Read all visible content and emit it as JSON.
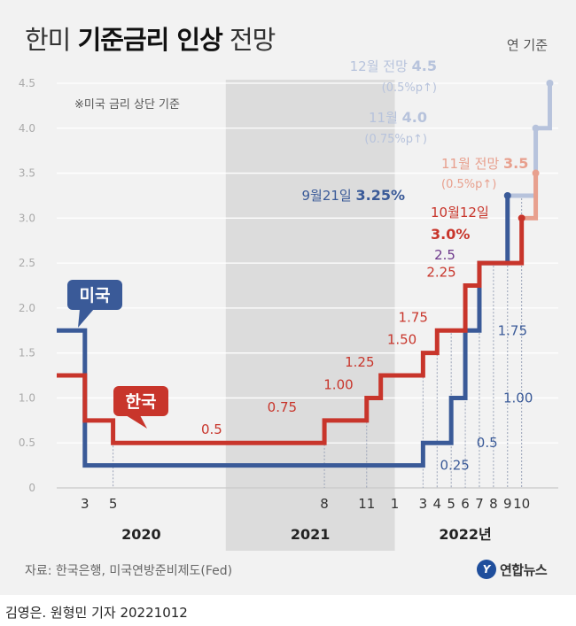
{
  "header": {
    "title_prefix": "한미",
    "title_bold": "기준금리 인상",
    "title_suffix": "전망",
    "basis": "연 기준"
  },
  "footnote": "※미국 금리 상단 기준",
  "footer": {
    "source": "자료: 한국은행, 미국연방준비제도(Fed)",
    "logo": "연합뉴스",
    "logo_mark": "Y",
    "credit": "김영은. 원형민 기자  20221012"
  },
  "colors": {
    "us": "#3a5a98",
    "korea": "#c8352b",
    "us_forecast": "#b7c3dc",
    "korea_forecast": "#e8a08e",
    "shade": "#dcdcdc",
    "grid": "#ffffff",
    "purple": "#6e3a8c"
  },
  "chart_data": {
    "type": "line",
    "step": true,
    "title": "한미 기준금리 인상 전망",
    "ylim": [
      0,
      4.5
    ],
    "yticks": [
      "0",
      "0.5",
      "1.0",
      "1.5",
      "2.0",
      "2.5",
      "3.0",
      "3.5",
      "4.0",
      "4.5"
    ],
    "ytick_values": [
      0,
      0.5,
      1.0,
      1.5,
      2.0,
      2.5,
      3.0,
      3.5,
      4.0,
      4.5
    ],
    "x_range": [
      0,
      35.6
    ],
    "shaded_range": [
      12,
      24
    ],
    "years": [
      {
        "label": "2020",
        "x": 6
      },
      {
        "label": "2021",
        "x": 18
      },
      {
        "label": "2022년",
        "x": 29
      }
    ],
    "month_ticks": [
      {
        "label": "3",
        "x": 2
      },
      {
        "label": "5",
        "x": 4
      },
      {
        "label": "8",
        "x": 19
      },
      {
        "label": "11",
        "x": 22
      },
      {
        "label": "1",
        "x": 24
      },
      {
        "label": "3",
        "x": 26
      },
      {
        "label": "4",
        "x": 27
      },
      {
        "label": "5",
        "x": 28
      },
      {
        "label": "6",
        "x": 29
      },
      {
        "label": "7",
        "x": 30
      },
      {
        "label": "8",
        "x": 31
      },
      {
        "label": "9",
        "x": 32
      },
      {
        "label": "10",
        "x": 33
      }
    ],
    "series": [
      {
        "name": "미국",
        "points": [
          [
            0,
            1.75
          ],
          [
            2,
            0.25
          ],
          [
            26,
            0.5
          ],
          [
            28,
            1.0
          ],
          [
            29,
            1.75
          ],
          [
            30,
            2.5
          ],
          [
            32,
            3.25
          ]
        ],
        "end_x": 32
      },
      {
        "name": "한국",
        "points": [
          [
            0,
            1.25
          ],
          [
            2,
            0.75
          ],
          [
            4,
            0.5
          ],
          [
            19,
            0.75
          ],
          [
            22,
            1.0
          ],
          [
            23,
            1.25
          ],
          [
            26,
            1.5
          ],
          [
            27,
            1.75
          ],
          [
            29,
            2.25
          ],
          [
            30,
            2.5
          ],
          [
            33,
            3.0
          ]
        ],
        "end_x": 33
      }
    ],
    "forecasts": [
      {
        "name": "미국 11월 전망",
        "from": [
          32,
          3.25
        ],
        "to": [
          34,
          4.0
        ]
      },
      {
        "name": "미국 12월 전망",
        "from": [
          34,
          4.0
        ],
        "to": [
          35,
          4.5
        ]
      },
      {
        "name": "한국 11월 전망",
        "from": [
          33,
          3.0
        ],
        "to": [
          34,
          3.5
        ]
      }
    ],
    "series_tags": [
      {
        "name": "미국",
        "anchor": [
          0,
          1.75
        ]
      },
      {
        "name": "한국",
        "anchor": [
          8,
          0.75
        ]
      }
    ],
    "value_labels": [
      {
        "text": "0.5",
        "series": "한국",
        "x": 11,
        "y": 0.5
      },
      {
        "text": "0.75",
        "series": "한국",
        "x": 16,
        "y": 0.75
      },
      {
        "text": "1.00",
        "series": "한국",
        "x": 20,
        "y": 1.0
      },
      {
        "text": "1.25",
        "series": "한국",
        "x": 21.5,
        "y": 1.25
      },
      {
        "text": "1.50",
        "series": "한국",
        "x": 24.5,
        "y": 1.5
      },
      {
        "text": "1.75",
        "series": "한국",
        "x": 25.3,
        "y": 1.75
      },
      {
        "text": "2.25",
        "series": "한국",
        "x": 27.3,
        "y": 2.25
      },
      {
        "text": "2.5",
        "series": "both",
        "x": 28.3,
        "y": 2.5
      },
      {
        "text": "0.25",
        "series": "미국",
        "x": 27.2,
        "y": 0.25
      },
      {
        "text": "0.5",
        "series": "미국",
        "x": 29.8,
        "y": 0.5
      },
      {
        "text": "1.00",
        "series": "미국",
        "x": 31.7,
        "y": 1.0
      },
      {
        "text": "1.75",
        "series": "미국",
        "x": 31.3,
        "y": 1.75
      }
    ],
    "annotations": [
      {
        "text_plain": "9월21일 ",
        "text_bold": "3.25%",
        "series": "미국",
        "x": 32,
        "y": 3.25
      },
      {
        "text_plain": "10월12일",
        "text_bold": "3.0%",
        "series": "한국",
        "x": 33,
        "y": 3.0
      },
      {
        "text_plain": "11월 전망 ",
        "text_bold": "3.5",
        "sub": "(0.5%p↑)",
        "series": "한국 전망",
        "x": 34,
        "y": 3.5
      },
      {
        "text_plain": "11월 ",
        "text_bold": "4.0",
        "sub": "(0.75%p↑)",
        "series": "미국 전망",
        "x": 34,
        "y": 4.0
      },
      {
        "text_plain": "12월 전망 ",
        "text_bold": "4.5",
        "sub": "(0.5%p↑)",
        "series": "미국 전망",
        "x": 35,
        "y": 4.5
      }
    ]
  }
}
